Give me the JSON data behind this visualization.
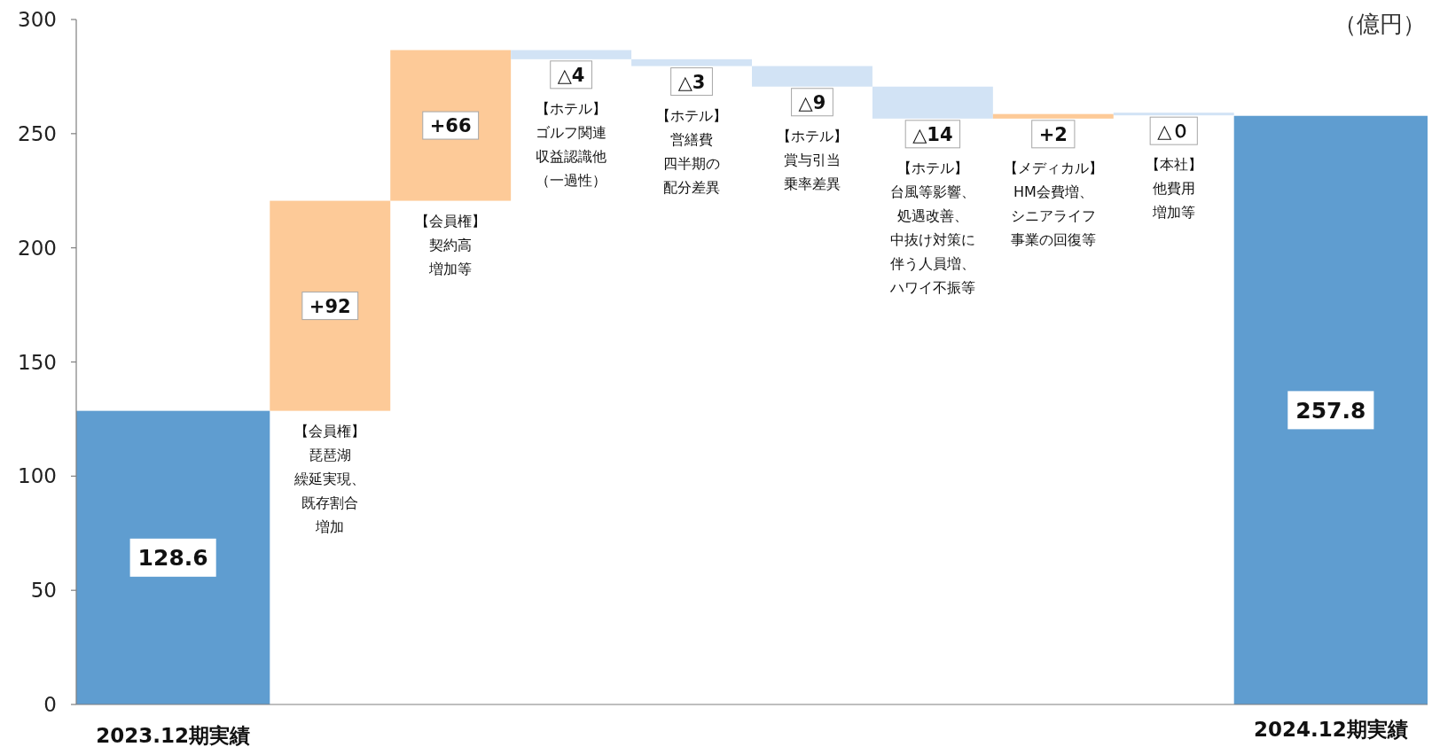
{
  "chart_data": {
    "type": "bar",
    "ylabel": "（億円）",
    "categories": [
      "2023.12期実績",
      null,
      null,
      null,
      null,
      null,
      null,
      null,
      null,
      "2024.12期実績"
    ],
    "values": [
      128.6,
      92,
      66,
      -4,
      -3,
      -9,
      -14,
      2,
      0,
      257.8
    ],
    "base": [
      0,
      128.6,
      220.6,
      286.6,
      282.6,
      279.6,
      270.6,
      256.6,
      258.6,
      0
    ],
    "colors": [
      "#5f9dd0",
      "#fdca98",
      "#fdca98",
      "#d2e3f5",
      "#d2e3f5",
      "#d2e3f5",
      "#d2e3f5",
      "#fdca98",
      "#d2e3f5",
      "#5f9dd0"
    ],
    "value_labels": [
      "128.6",
      "+92",
      "+66",
      "△4",
      "△3",
      "△9",
      "△14",
      "+2",
      "△０",
      "257.8"
    ],
    "ylim": [
      0,
      300
    ],
    "yticks": [
      0,
      50,
      100,
      150,
      200,
      250,
      300
    ],
    "annotations": [
      "【会員権】",
      "琵琶湖",
      "繰延実現、",
      "既存割合",
      "増加",
      "【会員権】",
      "契約高",
      "増加等",
      "【ホテル】",
      "ゴルフ関連",
      "収益認識他",
      "（一過性）",
      "【ホテル】",
      "営繕費",
      "四半期の",
      "配分差異",
      "【ホテル】",
      "賞与引当",
      "乗率差異",
      "【ホテル】",
      "台風等影響、",
      "処遇改善、",
      "中抜け対策に",
      "伴う人員増、",
      "ハワイ不振等",
      "【メディカル】",
      "HM会費増、",
      "シニアライフ",
      "事業の回復等",
      "【本社】",
      "他費用",
      "増加等"
    ]
  }
}
